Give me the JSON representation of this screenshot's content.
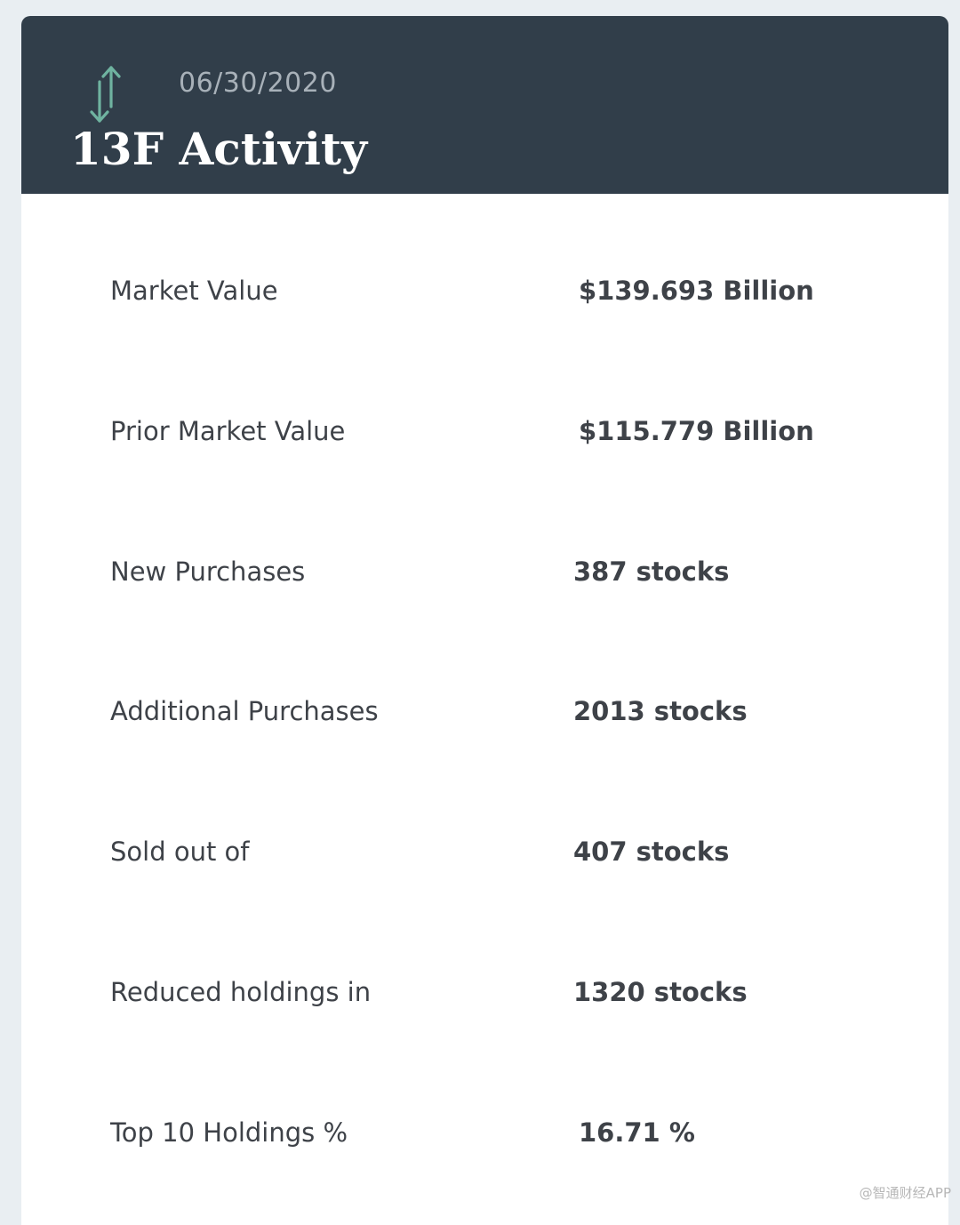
{
  "header": {
    "date": "06/30/2020",
    "title": "13F Activity",
    "icon": "up-down-arrows-icon",
    "background_color": "#313e4a",
    "icon_color": "#6fb3a0"
  },
  "stats": [
    {
      "label": "Market Value",
      "value": "$139.693 Billion"
    },
    {
      "label": "Prior Market Value",
      "value": "$115.779 Billion"
    },
    {
      "label": "New Purchases",
      "value": "387 stocks"
    },
    {
      "label": "Additional Purchases",
      "value": "2013 stocks"
    },
    {
      "label": "Sold out of",
      "value": "407 stocks"
    },
    {
      "label": "Reduced holdings in",
      "value": "1320 stocks"
    },
    {
      "label": "Top 10 Holdings %",
      "value": "16.71 %"
    }
  ],
  "watermark": "@智通财经APP"
}
